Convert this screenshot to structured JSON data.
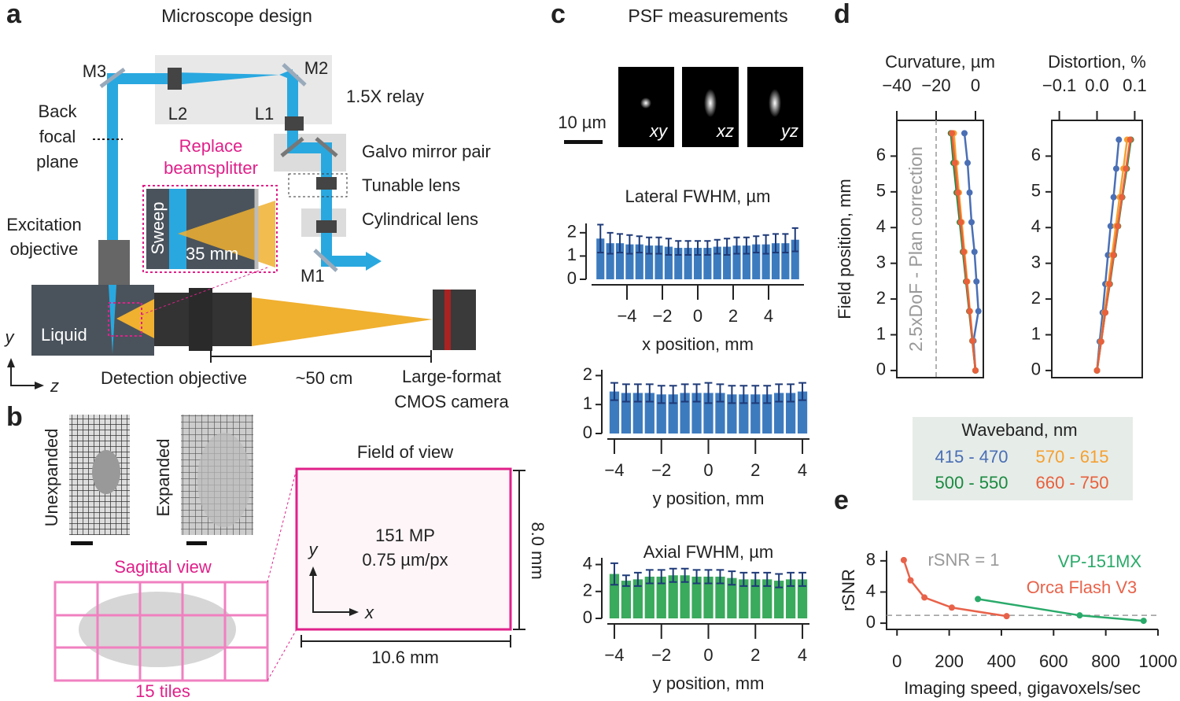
{
  "panel_labels": [
    "a",
    "b",
    "c",
    "d",
    "e"
  ],
  "panel_a": {
    "title": "Microscope design",
    "m3": "M3",
    "l2": "L2",
    "m2": "M2",
    "l1": "L1",
    "relay": "1.5X relay",
    "back_focal_plane": [
      "Back",
      "focal",
      "plane"
    ],
    "replace": [
      "Replace",
      "beamsplitter"
    ],
    "galvo": "Galvo mirror pair",
    "tunable": "Tunable lens",
    "cylindrical": "Cylindrical lens",
    "excitation": [
      "Excitation",
      "objective"
    ],
    "sweep": "Sweep",
    "sweep_range": "35 mm",
    "liquid": "Liquid",
    "m1": "M1",
    "detection": "Detection objective",
    "distance": "~50 cm",
    "camera": [
      "Large-format",
      "CMOS camera"
    ],
    "axis_y": "y",
    "axis_z": "z"
  },
  "panel_b": {
    "unexpanded": "Unexpanded",
    "expanded": "Expanded",
    "sagittal": "Sagittal view",
    "tiles": "15 tiles",
    "fov_title": "Field of view",
    "megapixels": "151 MP",
    "pixel_size": "0.75 µm/px",
    "height": "8.0 mm",
    "width": "10.6 mm",
    "axis_y": "y",
    "axis_x": "x"
  },
  "panel_c": {
    "title": "PSF measurements",
    "scale": "10 µm",
    "views": [
      "xy",
      "xz",
      "yz"
    ]
  },
  "legend": {
    "title": "Waveband, nm"
  },
  "chart_data": [
    {
      "type": "bar",
      "title": "Lateral FWHM, µm",
      "xlabel": "x position, mm",
      "color": "#3d7bbf",
      "x": [
        -5.5,
        -4.95,
        -4.4,
        -3.85,
        -3.3,
        -2.75,
        -2.2,
        -1.65,
        -1.1,
        -0.55,
        0,
        0.55,
        1.1,
        1.65,
        2.2,
        2.75,
        3.3,
        3.85,
        4.4,
        4.95,
        5.5
      ],
      "values": [
        1.75,
        1.55,
        1.55,
        1.5,
        1.5,
        1.45,
        1.45,
        1.4,
        1.35,
        1.35,
        1.35,
        1.35,
        1.4,
        1.4,
        1.45,
        1.45,
        1.5,
        1.5,
        1.55,
        1.55,
        1.7
      ],
      "errors": [
        0.6,
        0.45,
        0.4,
        0.4,
        0.35,
        0.35,
        0.35,
        0.35,
        0.3,
        0.3,
        0.3,
        0.3,
        0.3,
        0.35,
        0.35,
        0.35,
        0.35,
        0.4,
        0.4,
        0.4,
        0.5
      ],
      "xlim": [
        -6,
        6
      ],
      "ylim": [
        0,
        2.4
      ],
      "xticks": [
        {
          "value": -4,
          "label": "−4"
        },
        {
          "value": -2,
          "label": "−2"
        },
        0,
        2,
        4
      ],
      "yticks": [
        0,
        1,
        2
      ]
    },
    {
      "type": "bar",
      "xlabel": "y position, mm",
      "color": "#3d7bbf",
      "x": [
        -4,
        -3.5,
        -3,
        -2.5,
        -2,
        -1.5,
        -1,
        -0.5,
        0,
        0.5,
        1,
        1.5,
        2,
        2.5,
        3,
        3.5,
        4
      ],
      "values": [
        1.45,
        1.4,
        1.4,
        1.4,
        1.35,
        1.35,
        1.4,
        1.4,
        1.4,
        1.4,
        1.35,
        1.35,
        1.35,
        1.35,
        1.4,
        1.4,
        1.45
      ],
      "errors": [
        0.3,
        0.3,
        0.3,
        0.3,
        0.3,
        0.3,
        0.3,
        0.3,
        0.35,
        0.3,
        0.3,
        0.3,
        0.3,
        0.3,
        0.3,
        0.3,
        0.3
      ],
      "xlim": [
        -4.3,
        4.3
      ],
      "ylim": [
        0,
        2.2
      ],
      "xticks": [
        {
          "value": -4,
          "label": "−4"
        },
        {
          "value": -2,
          "label": "−2"
        },
        0,
        2,
        4
      ],
      "yticks": [
        0,
        1,
        2
      ]
    },
    {
      "type": "bar",
      "title": "Axial FWHM, µm",
      "xlabel": "y position, mm",
      "color": "#3aaa5c",
      "x": [
        -4,
        -3.5,
        -3,
        -2.5,
        -2,
        -1.5,
        -1,
        -0.5,
        0,
        0.5,
        1,
        1.5,
        2,
        2.5,
        3,
        3.5,
        4
      ],
      "values": [
        3.3,
        2.8,
        2.9,
        3.1,
        3.1,
        3.2,
        3.2,
        3.1,
        3.1,
        3.1,
        3.0,
        2.9,
        2.9,
        2.9,
        2.8,
        2.9,
        2.9
      ],
      "errors": [
        0.8,
        0.4,
        0.5,
        0.5,
        0.5,
        0.5,
        0.5,
        0.5,
        0.5,
        0.5,
        0.5,
        0.5,
        0.5,
        0.5,
        0.5,
        0.5,
        0.5
      ],
      "xlim": [
        -4.3,
        4.3
      ],
      "ylim": [
        0,
        4.5
      ],
      "xticks": [
        {
          "value": -4,
          "label": "−4"
        },
        {
          "value": -2,
          "label": "−2"
        },
        0,
        2,
        4
      ],
      "yticks": [
        0,
        2,
        4
      ]
    },
    {
      "type": "line",
      "xlabel": "Curvature, µm",
      "ylabel": "Field position, mm",
      "annotation": {
        "text": "2.5xDoF - Plan correction",
        "x": -20
      },
      "series": [
        {
          "name": "415 - 470",
          "color": "#4a6fb5",
          "x": [
            0,
            -1,
            1.5,
            0.5,
            -0.5,
            -2,
            -3,
            -4,
            -5.6
          ],
          "values": [
            0,
            0.83,
            1.66,
            2.49,
            3.32,
            4.15,
            4.98,
            5.81,
            6.64
          ]
        },
        {
          "name": "570 - 615",
          "color": "#f5a030",
          "x": [
            0,
            -1.4,
            -2.8,
            -4.2,
            -5.6,
            -7,
            -8.4,
            -9.8,
            -11
          ],
          "values": [
            0,
            0.83,
            1.66,
            2.49,
            3.32,
            4.15,
            4.98,
            5.81,
            6.64
          ]
        },
        {
          "name": "500 - 550",
          "color": "#1a8a40",
          "x": [
            0,
            -1.6,
            -3.2,
            -4.8,
            -6.4,
            -8,
            -9.6,
            -11.2,
            -12.5
          ],
          "values": [
            0,
            0.83,
            1.66,
            2.49,
            3.32,
            4.15,
            4.98,
            5.81,
            6.64
          ]
        },
        {
          "name": "660 - 750",
          "color": "#e8603c",
          "x": [
            0,
            -1.5,
            -3,
            -4.5,
            -6,
            -7.5,
            -9,
            -10.5,
            -12
          ],
          "values": [
            0,
            0.83,
            1.66,
            2.49,
            3.32,
            4.15,
            4.98,
            5.81,
            6.64
          ]
        }
      ],
      "xlim": [
        -40,
        4
      ],
      "ylim": [
        -0.2,
        7
      ],
      "xticks": [
        {
          "value": -40,
          "label": "−40"
        },
        {
          "value": -20,
          "label": "−20"
        },
        0
      ],
      "yticks": [
        0,
        1,
        2,
        3,
        4,
        5,
        6
      ]
    },
    {
      "type": "line",
      "xlabel": "Distortion, %",
      "series": [
        {
          "color": "#4a6fb5",
          "x": [
            0,
            0.007,
            0.015,
            0.022,
            0.029,
            0.036,
            0.044,
            0.051,
            0.058
          ],
          "values": [
            0,
            0.81,
            1.62,
            2.42,
            3.23,
            4.04,
            4.85,
            5.65,
            6.46
          ]
        },
        {
          "color": "#f5a030",
          "x": [
            0,
            0.01,
            0.02,
            0.03,
            0.04,
            0.05,
            0.06,
            0.07,
            0.08
          ],
          "values": [
            0,
            0.81,
            1.62,
            2.42,
            3.23,
            4.04,
            4.85,
            5.65,
            6.46
          ]
        },
        {
          "color": "#1a8a40",
          "x": [
            0,
            0.011,
            0.022,
            0.034,
            0.045,
            0.056,
            0.067,
            0.079,
            0.09
          ],
          "values": [
            0,
            0.81,
            1.62,
            2.42,
            3.23,
            4.04,
            4.85,
            5.65,
            6.46
          ]
        },
        {
          "color": "#e8603c",
          "x": [
            0,
            0.011,
            0.022,
            0.033,
            0.044,
            0.055,
            0.066,
            0.077,
            0.088
          ],
          "values": [
            0,
            0.81,
            1.62,
            2.42,
            3.23,
            4.04,
            4.85,
            5.65,
            6.46
          ]
        }
      ],
      "xlim": [
        -0.12,
        0.12
      ],
      "ylim": [
        -0.2,
        7
      ],
      "xticks": [
        {
          "value": -0.1,
          "label": "−0.1"
        },
        {
          "value": 0,
          "label": "0.0"
        },
        0.1
      ],
      "yticks": [
        0,
        1,
        2,
        3,
        4,
        5,
        6
      ]
    },
    {
      "type": "line",
      "xlabel": "Imaging speed, gigavoxels/sec",
      "ylabel": "rSNR",
      "hline": {
        "label": "rSNR = 1",
        "y": 1
      },
      "series": [
        {
          "name": "VP-151MX",
          "color": "#2aaa6a",
          "x": [
            310,
            700,
            945
          ],
          "values": [
            3.1,
            1.0,
            0.3
          ]
        },
        {
          "name": "Orca Flash V3",
          "color": "#e8624a",
          "x": [
            26,
            52,
            105,
            210,
            420
          ],
          "values": [
            8.1,
            5.5,
            3.3,
            2.0,
            0.9
          ]
        }
      ],
      "xlim": [
        -40,
        1000
      ],
      "ylim": [
        -0.8,
        9.3
      ],
      "xticks": [
        0,
        200,
        400,
        600,
        800,
        1000
      ],
      "yticks": [
        0,
        4,
        8
      ]
    }
  ]
}
